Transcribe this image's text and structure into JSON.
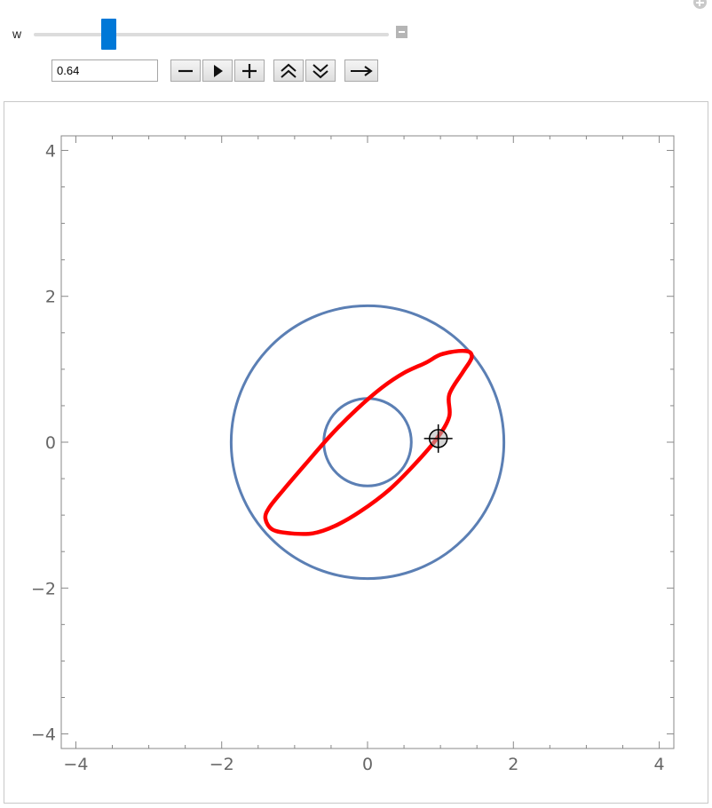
{
  "control": {
    "variable_label": "w",
    "value": "0.64",
    "slider_fraction": 0.198,
    "buttons": [
      {
        "name": "decrement-button",
        "icon": "minus-icon"
      },
      {
        "name": "play-button",
        "icon": "play-icon"
      },
      {
        "name": "increment-button",
        "icon": "plus-icon"
      },
      {
        "name": "faster-button",
        "icon": "double-chevron-up-icon"
      },
      {
        "name": "slower-button",
        "icon": "double-chevron-down-icon"
      },
      {
        "name": "direction-button",
        "icon": "right-arrow-icon"
      }
    ]
  },
  "colors": {
    "accent": "#0078d7",
    "circle": "#5b7fb4",
    "curve": "#ff0000",
    "axis": "#888888",
    "tick_text": "#666666"
  },
  "chart_data": {
    "type": "line",
    "xlim": [
      -4.2,
      4.2
    ],
    "ylim": [
      -4.2,
      4.2
    ],
    "x_ticks": [
      -4,
      -2,
      0,
      2,
      4
    ],
    "y_ticks": [
      -4,
      -2,
      0,
      2,
      4
    ],
    "x_tick_labels": [
      "−4",
      "−2",
      "0",
      "2",
      "4"
    ],
    "y_tick_labels": [
      "−4",
      "−2",
      "0",
      "2",
      "4"
    ],
    "grid": false,
    "circles": [
      {
        "name": "outer-circle",
        "cx": 0,
        "cy": 0,
        "r": 1.87
      },
      {
        "name": "inner-circle",
        "cx": 0,
        "cy": 0,
        "r": 0.6
      }
    ],
    "curve": {
      "name": "red-orbit",
      "points": [
        [
          1.12,
          0.65
        ],
        [
          1.3,
          0.95
        ],
        [
          1.4,
          1.1
        ],
        [
          1.43,
          1.18
        ],
        [
          1.39,
          1.24
        ],
        [
          1.25,
          1.25
        ],
        [
          1.0,
          1.2
        ],
        [
          0.8,
          1.09
        ],
        [
          0.5,
          0.95
        ],
        [
          0.2,
          0.75
        ],
        [
          -0.15,
          0.45
        ],
        [
          -0.5,
          0.1
        ],
        [
          -0.85,
          -0.3
        ],
        [
          -1.15,
          -0.65
        ],
        [
          -1.35,
          -0.9
        ],
        [
          -1.4,
          -1.05
        ],
        [
          -1.3,
          -1.2
        ],
        [
          -1.05,
          -1.25
        ],
        [
          -0.75,
          -1.25
        ],
        [
          -0.45,
          -1.15
        ],
        [
          -0.1,
          -0.95
        ],
        [
          0.3,
          -0.65
        ],
        [
          0.65,
          -0.3
        ],
        [
          0.95,
          0.05
        ],
        [
          1.12,
          0.35
        ],
        [
          1.12,
          0.65
        ]
      ]
    },
    "locator": {
      "x": 0.97,
      "y": 0.05,
      "icon": "crosshair-locator-icon"
    }
  }
}
